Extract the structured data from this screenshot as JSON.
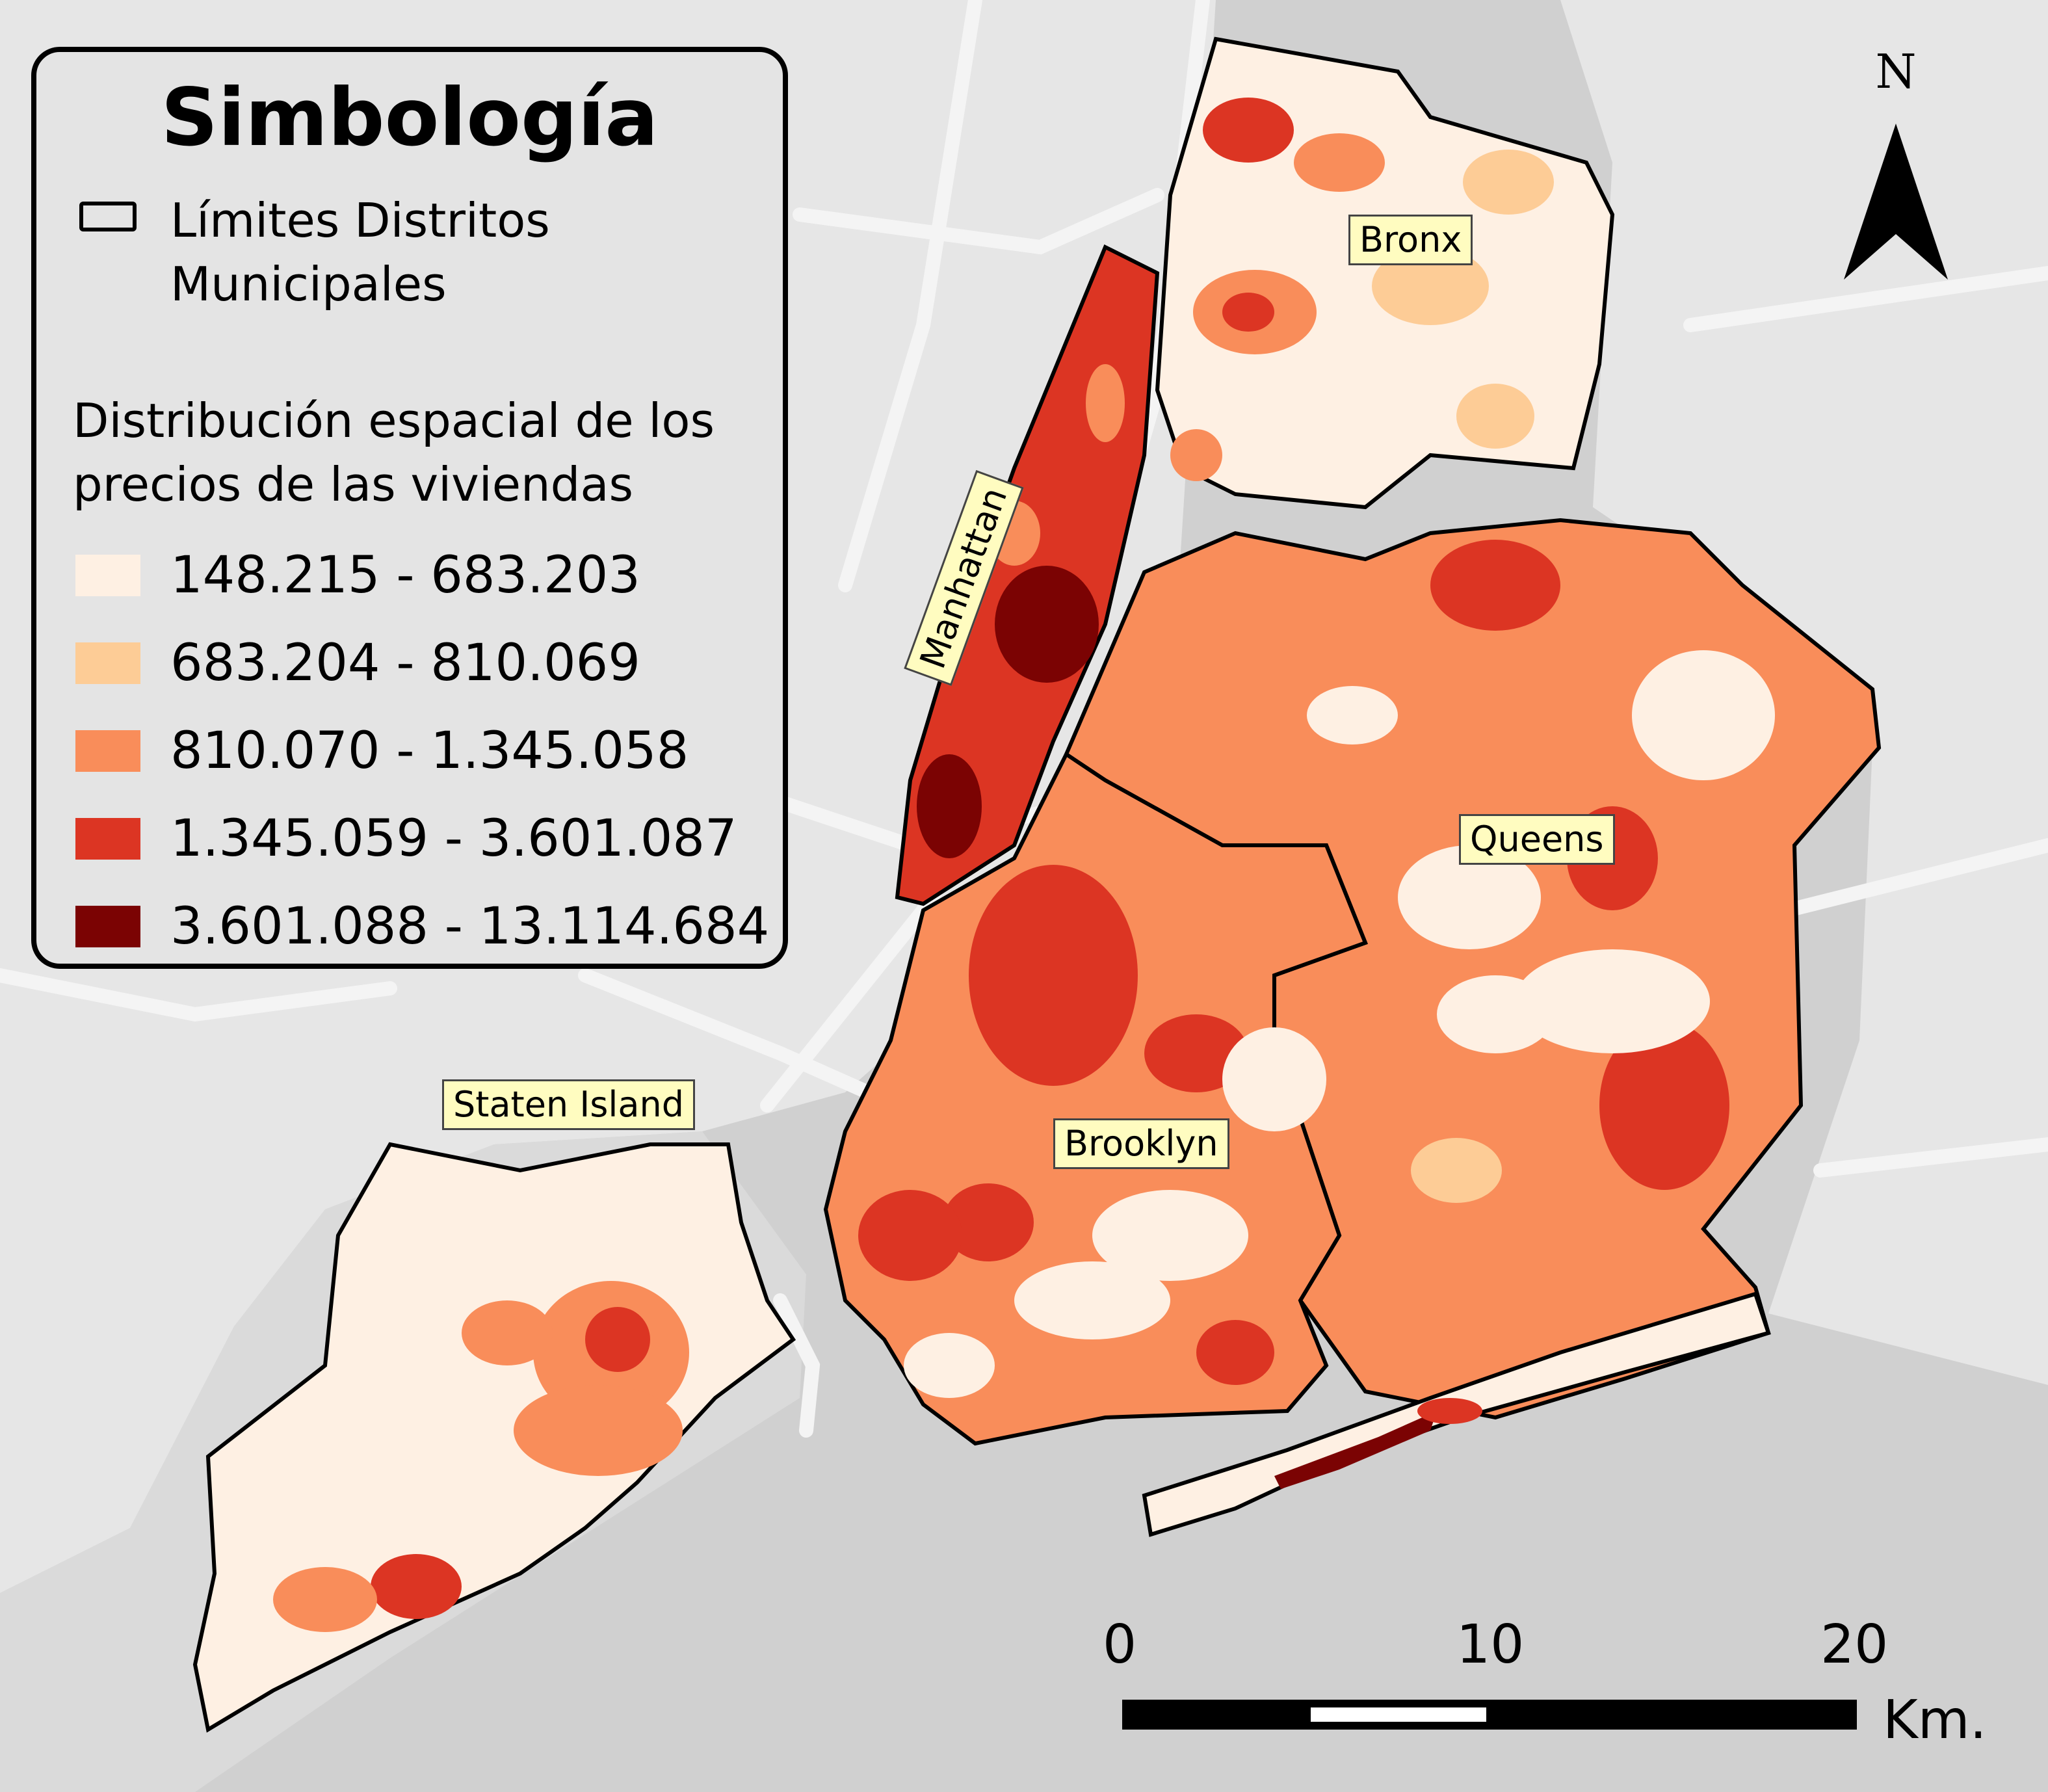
{
  "legend": {
    "title": "Simbología",
    "boundary_label": "Límites Distritos Municipales",
    "distribution_heading": "Distribución espacial de los precios de las viviendas",
    "classes": [
      {
        "label": "148.215 - 683.203",
        "color": "#fef0e3"
      },
      {
        "label": "683.204 - 810.069",
        "color": "#fdcc96"
      },
      {
        "label": "810.070 - 1.345.058",
        "color": "#f98d5a"
      },
      {
        "label": "1.345.059 - 3.601.087",
        "color": "#dc3523"
      },
      {
        "label": "3.601.088 - 13.114.684",
        "color": "#7b0303"
      }
    ]
  },
  "places": {
    "bronx": "Bronx",
    "manhattan": "Manhattan",
    "queens": "Queens",
    "brooklyn": "Brooklyn",
    "staten_island": "Staten Island"
  },
  "north_arrow": {
    "letter": "N"
  },
  "scale_bar": {
    "ticks": [
      "0",
      "10",
      "20"
    ],
    "unit": "Km."
  },
  "colors": {
    "water": "#d0d0d0",
    "land_background": "#e6e6e6",
    "boundary": "#000000"
  }
}
